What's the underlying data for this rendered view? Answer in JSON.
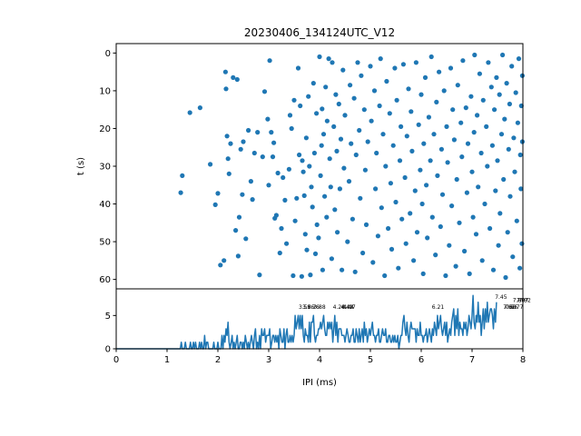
{
  "title": "20230406_134124UTC_V12",
  "colors": {
    "series": "#1f77b4",
    "axes": "#000000",
    "background": "#ffffff"
  },
  "chart_data": [
    {
      "type": "scatter",
      "panel": "raster",
      "xlabel": "",
      "ylabel": "t (s)",
      "xlim": [
        0,
        8
      ],
      "ylim": [
        62.5,
        -2.5
      ],
      "y_inverted": true,
      "yticks": [
        0,
        10,
        20,
        30,
        40,
        50,
        60
      ],
      "grid": false,
      "marker": "dot",
      "note": "",
      "points": [
        [
          1.27,
          37.0
        ],
        [
          1.3,
          32.5
        ],
        [
          1.45,
          15.8
        ],
        [
          1.65,
          14.5
        ],
        [
          1.85,
          29.5
        ],
        [
          1.95,
          40.2
        ],
        [
          2.0,
          37.2
        ],
        [
          2.05,
          56.2
        ],
        [
          2.12,
          55.0
        ],
        [
          2.15,
          5.0
        ],
        [
          2.16,
          9.5
        ],
        [
          2.18,
          22.0
        ],
        [
          2.2,
          28.0
        ],
        [
          2.22,
          32.0
        ],
        [
          2.25,
          24.0
        ],
        [
          2.3,
          6.5
        ],
        [
          2.35,
          47.0
        ],
        [
          2.38,
          7.0
        ],
        [
          2.4,
          53.8
        ],
        [
          2.42,
          43.5
        ],
        [
          2.45,
          25.5
        ],
        [
          2.48,
          37.5
        ],
        [
          2.5,
          23.5
        ],
        [
          2.55,
          49.2
        ],
        [
          2.6,
          20.5
        ],
        [
          2.65,
          34.0
        ],
        [
          2.68,
          38.8
        ],
        [
          2.72,
          26.5
        ],
        [
          2.78,
          21.0
        ],
        [
          2.82,
          58.8
        ],
        [
          2.88,
          27.5
        ],
        [
          2.92,
          10.2
        ],
        [
          2.98,
          17.5
        ],
        [
          3.0,
          35.0
        ],
        [
          3.02,
          2.0
        ],
        [
          3.05,
          21.0
        ],
        [
          3.08,
          27.5
        ],
        [
          3.1,
          23.8
        ],
        [
          3.12,
          43.8
        ],
        [
          3.15,
          43.0
        ],
        [
          3.18,
          31.8
        ],
        [
          3.22,
          53.0
        ],
        [
          3.25,
          46.5
        ],
        [
          3.28,
          33.0
        ],
        [
          3.32,
          39.0
        ],
        [
          3.35,
          50.5
        ],
        [
          3.4,
          30.8
        ],
        [
          3.42,
          16.5
        ],
        [
          3.45,
          20.0
        ],
        [
          3.48,
          59.0
        ],
        [
          3.5,
          12.5
        ],
        [
          3.52,
          44.5
        ],
        [
          3.55,
          38.5
        ],
        [
          3.58,
          4.0
        ],
        [
          3.6,
          27.0
        ],
        [
          3.62,
          14.0
        ],
        [
          3.65,
          59.2
        ],
        [
          3.66,
          28.5
        ],
        [
          3.68,
          31.5
        ],
        [
          3.7,
          37.8
        ],
        [
          3.72,
          48.0
        ],
        [
          3.74,
          22.5
        ],
        [
          3.75,
          52.2
        ],
        [
          3.78,
          11.5
        ],
        [
          3.8,
          30.0
        ],
        [
          3.82,
          58.8
        ],
        [
          3.84,
          35.5
        ],
        [
          3.86,
          40.8
        ],
        [
          3.88,
          8.0
        ],
        [
          3.9,
          26.5
        ],
        [
          3.92,
          53.2
        ],
        [
          3.94,
          16.0
        ],
        [
          3.95,
          45.5
        ],
        [
          3.98,
          49.0
        ],
        [
          4.0,
          1.0
        ],
        [
          4.02,
          32.5
        ],
        [
          4.04,
          24.5
        ],
        [
          4.05,
          14.8
        ],
        [
          4.06,
          57.5
        ],
        [
          4.08,
          21.5
        ],
        [
          4.1,
          38.0
        ],
        [
          4.12,
          9.0
        ],
        [
          4.14,
          43.5
        ],
        [
          4.15,
          18.0
        ],
        [
          4.18,
          1.5
        ],
        [
          4.2,
          28.0
        ],
        [
          4.22,
          35.5
        ],
        [
          4.24,
          54.5
        ],
        [
          4.25,
          2.5
        ],
        [
          4.28,
          19.5
        ],
        [
          4.3,
          41.5
        ],
        [
          4.32,
          11.0
        ],
        [
          4.34,
          26.0
        ],
        [
          4.35,
          47.5
        ],
        [
          4.38,
          13.5
        ],
        [
          4.4,
          36.0
        ],
        [
          4.42,
          22.8
        ],
        [
          4.44,
          57.5
        ],
        [
          4.46,
          4.5
        ],
        [
          4.48,
          30.5
        ],
        [
          4.5,
          16.5
        ],
        [
          4.55,
          50.0
        ],
        [
          4.58,
          34.0
        ],
        [
          4.6,
          8.5
        ],
        [
          4.62,
          24.0
        ],
        [
          4.65,
          44.0
        ],
        [
          4.68,
          12.0
        ],
        [
          4.7,
          58.0
        ],
        [
          4.72,
          27.0
        ],
        [
          4.75,
          2.5
        ],
        [
          4.78,
          20.5
        ],
        [
          4.8,
          38.5
        ],
        [
          4.82,
          6.0
        ],
        [
          4.85,
          53.0
        ],
        [
          4.88,
          15.0
        ],
        [
          4.9,
          31.0
        ],
        [
          4.92,
          45.5
        ],
        [
          4.95,
          23.5
        ],
        [
          5.0,
          3.5
        ],
        [
          5.02,
          18.0
        ],
        [
          5.05,
          55.5
        ],
        [
          5.08,
          10.0
        ],
        [
          5.1,
          36.0
        ],
        [
          5.12,
          26.5
        ],
        [
          5.15,
          48.5
        ],
        [
          5.18,
          14.0
        ],
        [
          5.2,
          1.5
        ],
        [
          5.22,
          41.0
        ],
        [
          5.25,
          21.5
        ],
        [
          5.28,
          59.0
        ],
        [
          5.3,
          30.0
        ],
        [
          5.32,
          7.5
        ],
        [
          5.35,
          46.5
        ],
        [
          5.38,
          16.0
        ],
        [
          5.4,
          34.5
        ],
        [
          5.42,
          52.0
        ],
        [
          5.45,
          24.5
        ],
        [
          5.48,
          4.0
        ],
        [
          5.5,
          39.5
        ],
        [
          5.52,
          12.5
        ],
        [
          5.55,
          57.0
        ],
        [
          5.58,
          28.5
        ],
        [
          5.6,
          19.5
        ],
        [
          5.62,
          44.0
        ],
        [
          5.65,
          3.0
        ],
        [
          5.68,
          33.0
        ],
        [
          5.7,
          50.5
        ],
        [
          5.72,
          22.0
        ],
        [
          5.75,
          9.5
        ],
        [
          5.78,
          42.5
        ],
        [
          5.8,
          15.5
        ],
        [
          5.82,
          26.0
        ],
        [
          5.85,
          55.0
        ],
        [
          5.88,
          36.5
        ],
        [
          5.9,
          2.5
        ],
        [
          5.92,
          47.5
        ],
        [
          5.95,
          19.0
        ],
        [
          5.98,
          31.0
        ],
        [
          6.0,
          11.0
        ],
        [
          6.02,
          40.0
        ],
        [
          6.04,
          58.5
        ],
        [
          6.05,
          24.0
        ],
        [
          6.08,
          6.5
        ],
        [
          6.1,
          35.0
        ],
        [
          6.12,
          49.0
        ],
        [
          6.15,
          17.0
        ],
        [
          6.18,
          28.5
        ],
        [
          6.2,
          1.0
        ],
        [
          6.22,
          43.5
        ],
        [
          6.25,
          21.5
        ],
        [
          6.28,
          53.5
        ],
        [
          6.3,
          13.0
        ],
        [
          6.32,
          32.5
        ],
        [
          6.35,
          5.0
        ],
        [
          6.38,
          46.0
        ],
        [
          6.4,
          25.5
        ],
        [
          6.42,
          37.5
        ],
        [
          6.45,
          10.0
        ],
        [
          6.48,
          59.0
        ],
        [
          6.5,
          19.5
        ],
        [
          6.52,
          29.0
        ],
        [
          6.55,
          51.0
        ],
        [
          6.58,
          4.0
        ],
        [
          6.6,
          40.5
        ],
        [
          6.62,
          15.0
        ],
        [
          6.65,
          23.0
        ],
        [
          6.68,
          56.5
        ],
        [
          6.7,
          33.5
        ],
        [
          6.72,
          8.5
        ],
        [
          6.75,
          45.0
        ],
        [
          6.78,
          18.5
        ],
        [
          6.8,
          27.5
        ],
        [
          6.82,
          2.0
        ],
        [
          6.85,
          52.5
        ],
        [
          6.88,
          14.5
        ],
        [
          6.9,
          37.0
        ],
        [
          6.92,
          24.0
        ],
        [
          6.95,
          58.5
        ],
        [
          6.98,
          11.5
        ],
        [
          7.0,
          31.5
        ],
        [
          7.02,
          43.5
        ],
        [
          7.04,
          21.0
        ],
        [
          7.05,
          0.5
        ],
        [
          7.08,
          48.0
        ],
        [
          7.1,
          16.5
        ],
        [
          7.12,
          35.5
        ],
        [
          7.15,
          5.5
        ],
        [
          7.18,
          26.5
        ],
        [
          7.2,
          55.0
        ],
        [
          7.22,
          12.5
        ],
        [
          7.25,
          40.0
        ],
        [
          7.28,
          19.5
        ],
        [
          7.3,
          30.0
        ],
        [
          7.32,
          2.5
        ],
        [
          7.35,
          46.5
        ],
        [
          7.38,
          9.0
        ],
        [
          7.4,
          24.5
        ],
        [
          7.42,
          57.5
        ],
        [
          7.44,
          15.0
        ],
        [
          7.46,
          36.5
        ],
        [
          7.48,
          6.5
        ],
        [
          7.5,
          28.5
        ],
        [
          7.52,
          51.0
        ],
        [
          7.54,
          11.0
        ],
        [
          7.55,
          42.5
        ],
        [
          7.58,
          21.5
        ],
        [
          7.6,
          0.5
        ],
        [
          7.62,
          33.5
        ],
        [
          7.64,
          17.5
        ],
        [
          7.66,
          59.5
        ],
        [
          7.68,
          8.0
        ],
        [
          7.7,
          47.5
        ],
        [
          7.72,
          25.5
        ],
        [
          7.74,
          13.5
        ],
        [
          7.75,
          38.0
        ],
        [
          7.78,
          3.5
        ],
        [
          7.8,
          54.0
        ],
        [
          7.82,
          22.5
        ],
        [
          7.84,
          31.5
        ],
        [
          7.86,
          10.5
        ],
        [
          7.88,
          44.5
        ],
        [
          7.9,
          18.5
        ],
        [
          7.92,
          1.5
        ],
        [
          7.94,
          57.0
        ],
        [
          7.95,
          27.0
        ],
        [
          7.96,
          36.0
        ],
        [
          7.97,
          14.0
        ],
        [
          7.98,
          50.5
        ],
        [
          7.99,
          23.5
        ],
        [
          7.99,
          6.0
        ]
      ]
    },
    {
      "type": "line",
      "panel": "histogram",
      "xlabel": "IPI (ms)",
      "ylabel": "",
      "xlim": [
        0,
        8
      ],
      "ylim": [
        0,
        9
      ],
      "xticks": [
        0,
        1,
        2,
        3,
        4,
        5,
        6,
        7,
        8
      ],
      "yticks": [
        0,
        5
      ],
      "grid": false,
      "x_step": 0.02,
      "values": [
        0,
        0,
        0,
        0,
        0,
        0,
        0,
        0,
        0,
        0,
        0,
        0,
        0,
        0,
        0,
        0,
        0,
        0,
        0,
        0,
        0,
        0,
        0,
        0,
        0,
        0,
        0,
        0,
        0,
        0,
        0,
        0,
        0,
        0,
        0,
        0,
        0,
        0,
        0,
        0,
        0,
        0,
        0,
        0,
        0,
        0,
        0,
        0,
        0,
        0,
        0,
        0,
        0,
        0,
        0,
        0,
        0,
        0,
        0,
        0,
        0,
        0,
        0,
        0,
        1,
        0,
        0,
        0,
        1,
        0,
        0,
        0,
        0,
        1,
        0,
        0,
        1,
        0,
        1,
        0,
        0,
        0,
        1,
        0,
        1,
        0,
        0,
        2,
        0,
        1,
        1,
        0,
        0,
        0,
        0,
        0,
        1,
        0,
        0,
        0,
        1,
        0,
        0,
        0,
        2,
        0,
        2,
        1,
        3,
        2,
        4,
        1,
        0,
        1,
        2,
        0,
        1,
        0,
        1,
        2,
        0,
        0,
        1,
        1,
        0,
        1,
        0,
        2,
        1,
        0,
        1,
        0,
        1,
        2,
        1,
        0,
        2,
        3,
        0,
        1,
        0,
        2,
        0,
        3,
        2,
        2,
        3,
        1,
        2,
        2,
        2,
        3,
        0,
        1,
        2,
        2,
        1,
        2,
        1,
        2,
        0,
        3,
        2,
        1,
        1,
        3,
        0,
        2,
        3,
        1,
        1,
        2,
        1,
        2,
        1,
        2,
        5,
        3,
        4,
        5,
        3,
        5,
        3,
        5,
        2,
        1,
        3,
        2,
        2,
        1,
        4,
        1,
        4,
        4,
        5,
        2,
        1,
        2,
        2,
        3,
        3,
        4,
        3,
        4,
        5,
        3,
        2,
        2,
        4,
        3,
        4,
        3,
        4,
        1,
        3,
        5,
        2,
        4,
        1,
        3,
        3,
        3,
        2,
        2,
        2,
        1,
        2,
        3,
        2,
        1,
        1,
        2,
        2,
        3,
        1,
        1,
        3,
        2,
        1,
        3,
        1,
        2,
        3,
        1,
        4,
        2,
        3,
        1,
        2,
        3,
        2,
        3,
        4,
        2,
        2,
        1,
        2,
        2,
        3,
        1,
        1,
        2,
        3,
        2,
        2,
        3,
        1,
        1,
        2,
        2,
        1,
        1,
        2,
        1,
        2,
        1,
        1,
        2,
        0,
        1,
        2,
        2,
        4,
        5,
        3,
        2,
        4,
        2,
        1,
        3,
        4,
        3,
        3,
        3,
        3,
        1,
        3,
        2,
        2,
        4,
        2,
        2,
        1,
        2,
        2,
        3,
        1,
        2,
        3,
        2,
        1,
        3,
        2,
        4,
        3,
        2,
        5,
        3,
        4,
        5,
        3,
        2,
        3,
        4,
        2,
        4,
        1,
        2,
        3,
        2,
        4,
        5,
        6,
        2,
        5,
        3,
        6,
        2,
        4,
        3,
        3,
        2,
        4,
        3,
        4,
        2,
        3,
        5,
        4,
        3,
        5,
        8,
        4,
        3,
        5,
        4,
        7,
        4,
        5,
        2,
        4,
        6,
        3,
        6,
        4,
        7,
        4,
        5,
        6,
        6,
        5,
        3,
        6,
        4,
        7
      ],
      "annotations": [
        {
          "x": 3.59,
          "y": 6.0,
          "text": "3.59"
        },
        {
          "x": 3.66,
          "y": 6.0,
          "text": "3.66"
        },
        {
          "x": 3.76,
          "y": 6.0,
          "text": "3.76"
        },
        {
          "x": 3.88,
          "y": 6.0,
          "text": "3.88"
        },
        {
          "x": 4.26,
          "y": 6.0,
          "text": "4.26"
        },
        {
          "x": 4.42,
          "y": 6.0,
          "text": "4.42"
        },
        {
          "x": 4.44,
          "y": 6.0,
          "text": "4.44"
        },
        {
          "x": 4.47,
          "y": 6.0,
          "text": "4.47"
        },
        {
          "x": 6.21,
          "y": 6.0,
          "text": "6.21"
        },
        {
          "x": 7.45,
          "y": 7.5,
          "text": "7.45"
        },
        {
          "x": 7.61,
          "y": 6.0,
          "text": "7.61"
        },
        {
          "x": 7.63,
          "y": 6.0,
          "text": "7.63"
        },
        {
          "x": 7.66,
          "y": 6.0,
          "text": "7.66"
        },
        {
          "x": 7.77,
          "y": 6.0,
          "text": "7.77"
        },
        {
          "x": 7.8,
          "y": 7.0,
          "text": "7.80"
        },
        {
          "x": 7.87,
          "y": 7.0,
          "text": "7.87"
        },
        {
          "x": 7.92,
          "y": 7.0,
          "text": "7.92"
        }
      ]
    }
  ]
}
